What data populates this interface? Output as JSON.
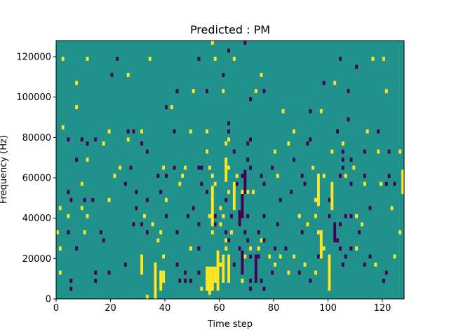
{
  "chart_data": {
    "type": "heatmap",
    "title": "Predicted : PM",
    "xlabel": "Time step",
    "ylabel": "Frequency (Hz)",
    "xlim": [
      0,
      128
    ],
    "ylim": [
      0,
      128000
    ],
    "xticks": [
      0,
      20,
      40,
      60,
      80,
      100,
      120
    ],
    "yticks": [
      0,
      20000,
      40000,
      60000,
      80000,
      100000,
      120000
    ],
    "ytick_labels": [
      "0",
      "20000",
      "40000",
      "60000",
      "80000",
      "100000",
      "120000"
    ],
    "freq_bin_hz": 2000,
    "grid": false,
    "background_value": 1,
    "colormap": {
      "0": "#440154",
      "1": "#21918c",
      "2": "#fde725"
    },
    "cells": [
      [
        2,
        118000,
        2
      ],
      [
        5,
        118000,
        1
      ],
      [
        11,
        118000,
        2
      ],
      [
        22,
        118000,
        0
      ],
      [
        34,
        118000,
        2
      ],
      [
        52,
        118000,
        0
      ],
      [
        58,
        118000,
        2
      ],
      [
        65,
        118000,
        2
      ],
      [
        104,
        118000,
        0
      ],
      [
        116,
        118000,
        2
      ],
      [
        120,
        118000,
        2
      ],
      [
        110,
        114000,
        0
      ],
      [
        20,
        110000,
        0
      ],
      [
        26,
        110000,
        2
      ],
      [
        61,
        110000,
        0
      ],
      [
        75,
        110000,
        2
      ],
      [
        7,
        106000,
        2
      ],
      [
        98,
        106000,
        0
      ],
      [
        102,
        106000,
        2
      ],
      [
        44,
        102000,
        0
      ],
      [
        50,
        102000,
        2
      ],
      [
        55,
        102000,
        0
      ],
      [
        61,
        102000,
        2
      ],
      [
        73,
        102000,
        2
      ],
      [
        76,
        102000,
        0
      ],
      [
        107,
        102000,
        0
      ],
      [
        121,
        102000,
        2
      ],
      [
        71,
        98000,
        0
      ],
      [
        7,
        94000,
        2
      ],
      [
        40,
        94000,
        0
      ],
      [
        42,
        94000,
        2
      ],
      [
        83,
        92000,
        2
      ],
      [
        93,
        92000,
        0
      ],
      [
        97,
        92000,
        2
      ],
      [
        107,
        88000,
        0
      ],
      [
        63,
        86000,
        0
      ],
      [
        2,
        84000,
        2
      ],
      [
        19,
        82000,
        2
      ],
      [
        26,
        82000,
        0
      ],
      [
        28,
        82000,
        0
      ],
      [
        31,
        82000,
        2
      ],
      [
        43,
        82000,
        0
      ],
      [
        49,
        82000,
        2
      ],
      [
        55,
        82000,
        2
      ],
      [
        63,
        82000,
        0
      ],
      [
        87,
        82000,
        2
      ],
      [
        103,
        82000,
        0
      ],
      [
        114,
        82000,
        2
      ],
      [
        118,
        82000,
        0
      ],
      [
        4,
        78000,
        0
      ],
      [
        9,
        78000,
        0
      ],
      [
        14,
        78000,
        0
      ],
      [
        26,
        78000,
        2
      ],
      [
        63,
        78000,
        2
      ],
      [
        71,
        78000,
        0
      ],
      [
        93,
        78000,
        0
      ],
      [
        11,
        76000,
        0
      ],
      [
        17,
        76000,
        2
      ],
      [
        31,
        76000,
        0
      ],
      [
        62,
        76000,
        2
      ],
      [
        70,
        76000,
        0
      ],
      [
        85,
        76000,
        2
      ],
      [
        92,
        76000,
        0
      ],
      [
        105,
        76000,
        2
      ],
      [
        33,
        72000,
        0
      ],
      [
        55,
        72000,
        2
      ],
      [
        65,
        72000,
        0
      ],
      [
        80,
        72000,
        2
      ],
      [
        101,
        72000,
        2
      ],
      [
        105,
        72000,
        0
      ],
      [
        113,
        72000,
        0
      ],
      [
        118,
        72000,
        2
      ],
      [
        122,
        72000,
        0
      ],
      [
        126,
        72000,
        2
      ],
      [
        7,
        68000,
        0
      ],
      [
        11,
        68000,
        2
      ],
      [
        62,
        68000,
        2
      ],
      [
        70,
        68000,
        0
      ],
      [
        87,
        68000,
        0
      ],
      [
        105,
        68000,
        0
      ],
      [
        108,
        68000,
        0
      ],
      [
        23,
        64000,
        2
      ],
      [
        27,
        64000,
        0
      ],
      [
        39,
        64000,
        2
      ],
      [
        43,
        64000,
        0
      ],
      [
        47,
        64000,
        2
      ],
      [
        52,
        64000,
        0
      ],
      [
        53,
        64000,
        0
      ],
      [
        56,
        64000,
        2
      ],
      [
        63,
        64000,
        2
      ],
      [
        71,
        64000,
        0
      ],
      [
        79,
        64000,
        0
      ],
      [
        94,
        64000,
        2
      ],
      [
        105,
        64000,
        0
      ],
      [
        109,
        64000,
        2
      ],
      [
        21,
        60000,
        2
      ],
      [
        37,
        60000,
        0
      ],
      [
        40,
        60000,
        0
      ],
      [
        46,
        60000,
        2
      ],
      [
        57,
        60000,
        2
      ],
      [
        66,
        60000,
        2
      ],
      [
        68,
        60000,
        0
      ],
      [
        75,
        60000,
        0
      ],
      [
        81,
        60000,
        2
      ],
      [
        90,
        60000,
        0
      ],
      [
        98,
        60000,
        2
      ],
      [
        104,
        60000,
        0
      ],
      [
        106,
        60000,
        2
      ],
      [
        113,
        60000,
        0
      ],
      [
        122,
        60000,
        0
      ],
      [
        127,
        60000,
        2
      ],
      [
        9,
        56000,
        2
      ],
      [
        25,
        56000,
        0
      ],
      [
        45,
        56000,
        2
      ],
      [
        53,
        56000,
        0
      ],
      [
        58,
        56000,
        2
      ],
      [
        66,
        56000,
        0
      ],
      [
        76,
        56000,
        0
      ],
      [
        91,
        56000,
        0
      ],
      [
        108,
        56000,
        0
      ],
      [
        113,
        56000,
        2
      ],
      [
        119,
        56000,
        2
      ],
      [
        121,
        56000,
        0
      ],
      [
        124,
        56000,
        0
      ],
      [
        4,
        52000,
        0
      ],
      [
        29,
        52000,
        0
      ],
      [
        38,
        52000,
        0
      ],
      [
        55,
        52000,
        0
      ],
      [
        63,
        52000,
        2
      ],
      [
        68,
        52000,
        2
      ],
      [
        70,
        52000,
        2
      ],
      [
        72,
        52000,
        2
      ],
      [
        86,
        52000,
        0
      ],
      [
        101,
        52000,
        0
      ],
      [
        5,
        48000,
        0
      ],
      [
        10,
        48000,
        0
      ],
      [
        13,
        48000,
        0
      ],
      [
        19,
        48000,
        2
      ],
      [
        33,
        48000,
        0
      ],
      [
        40,
        48000,
        2
      ],
      [
        62,
        48000,
        0
      ],
      [
        68,
        48000,
        0
      ],
      [
        82,
        48000,
        0
      ],
      [
        95,
        48000,
        2
      ],
      [
        100,
        48000,
        0
      ],
      [
        1,
        44000,
        2
      ],
      [
        9,
        44000,
        2
      ],
      [
        29,
        44000,
        0
      ],
      [
        50,
        44000,
        0
      ],
      [
        60,
        44000,
        2
      ],
      [
        115,
        44000,
        0
      ],
      [
        123,
        44000,
        2
      ],
      [
        4,
        40000,
        2
      ],
      [
        11,
        40000,
        2
      ],
      [
        32,
        40000,
        2
      ],
      [
        40,
        40000,
        0
      ],
      [
        48,
        40000,
        0
      ],
      [
        56,
        40000,
        2
      ],
      [
        58,
        40000,
        0
      ],
      [
        61,
        40000,
        2
      ],
      [
        64,
        40000,
        0
      ],
      [
        67,
        40000,
        0
      ],
      [
        70,
        40000,
        0
      ],
      [
        76,
        40000,
        0
      ],
      [
        89,
        40000,
        2
      ],
      [
        95,
        40000,
        2
      ],
      [
        100,
        40000,
        0
      ],
      [
        106,
        40000,
        0
      ],
      [
        108,
        40000,
        0
      ],
      [
        110,
        40000,
        2
      ],
      [
        28,
        36000,
        0
      ],
      [
        31,
        36000,
        0
      ],
      [
        35,
        36000,
        2
      ],
      [
        52,
        36000,
        0
      ],
      [
        58,
        36000,
        0
      ],
      [
        60,
        36000,
        2
      ],
      [
        67,
        36000,
        2
      ],
      [
        81,
        36000,
        0
      ],
      [
        92,
        36000,
        2
      ],
      [
        104,
        36000,
        0
      ],
      [
        112,
        36000,
        2
      ],
      [
        0,
        32000,
        2
      ],
      [
        4,
        32000,
        0
      ],
      [
        10,
        32000,
        2
      ],
      [
        16,
        32000,
        0
      ],
      [
        33,
        32000,
        0
      ],
      [
        38,
        32000,
        2
      ],
      [
        44,
        32000,
        0
      ],
      [
        57,
        32000,
        2
      ],
      [
        62,
        32000,
        0
      ],
      [
        64,
        32000,
        2
      ],
      [
        69,
        32000,
        0
      ],
      [
        74,
        32000,
        0
      ],
      [
        90,
        32000,
        0
      ],
      [
        96,
        32000,
        2
      ],
      [
        111,
        32000,
        0
      ],
      [
        126,
        32000,
        2
      ],
      [
        17,
        28000,
        0
      ],
      [
        37,
        28000,
        2
      ],
      [
        62,
        28000,
        2
      ],
      [
        63,
        28000,
        0
      ],
      [
        70,
        28000,
        0
      ],
      [
        75,
        28000,
        2
      ],
      [
        76,
        28000,
        0
      ],
      [
        103,
        28000,
        0
      ],
      [
        1,
        24000,
        2
      ],
      [
        7,
        24000,
        0
      ],
      [
        49,
        24000,
        2
      ],
      [
        52,
        24000,
        0
      ],
      [
        62,
        24000,
        2
      ],
      [
        67,
        24000,
        0
      ],
      [
        71,
        24000,
        2
      ],
      [
        74,
        24000,
        2
      ],
      [
        80,
        24000,
        0
      ],
      [
        84,
        24000,
        0
      ],
      [
        98,
        24000,
        2
      ],
      [
        104,
        24000,
        0
      ],
      [
        108,
        24000,
        0
      ],
      [
        110,
        24000,
        2
      ],
      [
        39,
        20000,
        2
      ],
      [
        59,
        20000,
        0
      ],
      [
        69,
        20000,
        2
      ],
      [
        71,
        20000,
        0
      ],
      [
        74,
        20000,
        0
      ],
      [
        78,
        20000,
        2
      ],
      [
        82,
        20000,
        2
      ],
      [
        87,
        20000,
        2
      ],
      [
        96,
        20000,
        0
      ],
      [
        106,
        20000,
        0
      ],
      [
        115,
        20000,
        0
      ],
      [
        124,
        20000,
        2
      ],
      [
        25,
        16000,
        0
      ],
      [
        44,
        16000,
        0
      ],
      [
        60,
        16000,
        2
      ],
      [
        61,
        16000,
        0
      ],
      [
        65,
        16000,
        0
      ],
      [
        80,
        16000,
        2
      ],
      [
        91,
        16000,
        2
      ],
      [
        105,
        16000,
        0
      ],
      [
        113,
        16000,
        0
      ],
      [
        117,
        16000,
        2
      ],
      [
        1,
        12000,
        2
      ],
      [
        14,
        12000,
        0
      ],
      [
        19,
        12000,
        0
      ],
      [
        47,
        12000,
        0
      ],
      [
        52,
        12000,
        0
      ],
      [
        56,
        12000,
        0
      ],
      [
        59,
        12000,
        0
      ],
      [
        68,
        12000,
        0
      ],
      [
        73,
        12000,
        0
      ],
      [
        79,
        12000,
        0
      ],
      [
        85,
        12000,
        2
      ],
      [
        89,
        12000,
        0
      ],
      [
        95,
        12000,
        2
      ],
      [
        121,
        12000,
        0
      ],
      [
        5,
        8000,
        0
      ],
      [
        14,
        8000,
        0
      ],
      [
        45,
        8000,
        0
      ],
      [
        47,
        8000,
        0
      ],
      [
        49,
        8000,
        0
      ],
      [
        68,
        8000,
        2
      ],
      [
        71,
        8000,
        0
      ],
      [
        75,
        8000,
        0
      ],
      [
        93,
        8000,
        0
      ],
      [
        120,
        8000,
        0
      ],
      [
        5,
        4000,
        0
      ],
      [
        53,
        4000,
        2
      ],
      [
        59,
        4000,
        0
      ],
      [
        71,
        4000,
        0
      ],
      [
        76,
        4000,
        0
      ],
      [
        33,
        0,
        2
      ],
      [
        57,
        126000,
        2
      ],
      [
        69,
        126000,
        0
      ],
      [
        63,
        122000,
        0
      ]
    ],
    "runs": [
      [
        31,
        12000,
        20000,
        2
      ],
      [
        36,
        0,
        16000,
        2
      ],
      [
        38,
        4000,
        12000,
        2
      ],
      [
        39,
        8000,
        12000,
        2
      ],
      [
        55,
        4000,
        14000,
        2
      ],
      [
        56,
        2000,
        14000,
        2
      ],
      [
        57,
        4000,
        14000,
        2
      ],
      [
        58,
        8000,
        14000,
        2
      ],
      [
        59,
        4000,
        22000,
        2
      ],
      [
        61,
        8000,
        20000,
        2
      ],
      [
        63,
        8000,
        20000,
        2
      ],
      [
        68,
        14000,
        22000,
        0
      ],
      [
        67,
        36000,
        42000,
        0
      ],
      [
        68,
        40000,
        50000,
        0
      ],
      [
        57,
        36000,
        54000,
        2
      ],
      [
        65,
        44000,
        56000,
        2
      ],
      [
        69,
        52000,
        60000,
        0
      ],
      [
        73,
        8000,
        20000,
        0
      ],
      [
        100,
        4000,
        20000,
        2
      ],
      [
        97,
        20000,
        32000,
        2
      ],
      [
        101,
        44000,
        56000,
        2
      ],
      [
        102,
        28000,
        36000,
        0
      ],
      [
        62,
        58000,
        68000,
        2
      ],
      [
        96,
        46000,
        60000,
        2
      ],
      [
        127,
        52000,
        62000,
        2
      ],
      [
        69,
        56000,
        62000,
        0
      ]
    ]
  }
}
